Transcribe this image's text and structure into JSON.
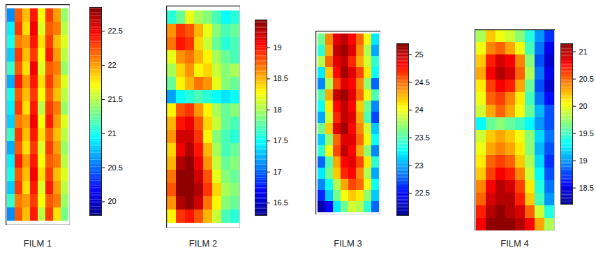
{
  "chart_data": [
    {
      "type": "heatmap",
      "title": "FILM 1",
      "tick_labels": false,
      "colorbar_range": [
        19.8,
        22.85
      ],
      "colorbar_ticks": [
        20,
        20.5,
        21,
        21.5,
        22,
        22.5
      ],
      "cells": [
        [
          20.6,
          22.2,
          21.9,
          22.4,
          21.7,
          22.3,
          22.0,
          21.4
        ],
        [
          20.9,
          22.3,
          21.8,
          22.5,
          21.6,
          22.2,
          22.1,
          21.5
        ],
        [
          21.0,
          22.1,
          22.0,
          22.4,
          21.8,
          22.3,
          21.9,
          21.6
        ],
        [
          20.8,
          22.3,
          21.9,
          22.3,
          21.7,
          22.4,
          22.0,
          21.5
        ],
        [
          21.1,
          22.2,
          21.8,
          22.5,
          21.6,
          22.2,
          22.1,
          21.4
        ],
        [
          20.7,
          22.4,
          22.0,
          22.4,
          21.8,
          22.3,
          22.0,
          21.6
        ],
        [
          21.0,
          22.2,
          21.9,
          22.3,
          21.7,
          22.2,
          21.9,
          21.5
        ],
        [
          20.9,
          22.3,
          21.8,
          22.4,
          21.5,
          22.3,
          22.1,
          21.4
        ],
        [
          20.8,
          22.1,
          22.0,
          22.5,
          21.7,
          22.4,
          22.0,
          21.6
        ],
        [
          21.1,
          22.3,
          21.9,
          22.4,
          21.8,
          22.2,
          21.9,
          21.5
        ],
        [
          20.7,
          22.2,
          21.8,
          22.3,
          21.6,
          22.3,
          22.0,
          21.4
        ],
        [
          20.9,
          22.4,
          22.0,
          22.4,
          21.7,
          22.2,
          22.1,
          21.5
        ],
        [
          21.0,
          22.2,
          21.9,
          22.5,
          21.8,
          22.3,
          21.9,
          21.6
        ],
        [
          20.8,
          22.3,
          21.8,
          22.4,
          21.6,
          22.4,
          22.0,
          21.5
        ],
        [
          21.1,
          22.1,
          22.0,
          22.3,
          21.7,
          22.2,
          22.1,
          21.4
        ],
        [
          20.6,
          22.2,
          21.9,
          22.4,
          21.5,
          22.3,
          21.8,
          21.3
        ]
      ]
    },
    {
      "type": "heatmap",
      "title": "FILM 2",
      "tick_labels": false,
      "colorbar_range": [
        16.3,
        19.45
      ],
      "colorbar_ticks": [
        16.5,
        17,
        17.5,
        18,
        18.5,
        19
      ],
      "cells": [
        [
          17.6,
          17.8,
          18.2,
          18.0,
          17.9,
          17.7,
          17.5,
          17.6
        ],
        [
          18.6,
          18.9,
          18.8,
          18.5,
          18.2,
          17.9,
          17.7,
          17.8
        ],
        [
          18.7,
          19.0,
          18.9,
          18.4,
          18.1,
          17.8,
          17.6,
          17.7
        ],
        [
          18.2,
          18.6,
          18.7,
          18.5,
          18.3,
          18.0,
          17.8,
          17.7
        ],
        [
          18.0,
          18.4,
          18.6,
          18.3,
          18.4,
          18.1,
          17.9,
          18.0
        ],
        [
          17.8,
          18.3,
          18.5,
          18.7,
          18.6,
          18.2,
          17.9,
          17.8
        ],
        [
          17.2,
          17.5,
          17.6,
          17.7,
          17.6,
          17.5,
          17.4,
          17.5
        ],
        [
          18.3,
          18.8,
          18.9,
          18.6,
          18.3,
          18.0,
          17.8,
          17.9
        ],
        [
          18.5,
          19.0,
          19.1,
          18.8,
          18.4,
          18.1,
          17.8,
          17.7
        ],
        [
          18.6,
          19.2,
          19.2,
          18.9,
          18.3,
          17.9,
          17.7,
          17.6
        ],
        [
          18.4,
          19.1,
          19.3,
          19.0,
          18.5,
          18.0,
          17.7,
          17.8
        ],
        [
          18.5,
          19.3,
          19.4,
          19.1,
          18.6,
          18.1,
          17.8,
          17.9
        ],
        [
          18.7,
          19.4,
          19.4,
          19.2,
          18.8,
          18.2,
          17.9,
          17.8
        ],
        [
          18.8,
          19.4,
          19.4,
          19.3,
          18.9,
          18.4,
          18.0,
          17.9
        ],
        [
          18.6,
          19.3,
          19.4,
          19.2,
          18.7,
          18.3,
          17.9,
          17.8
        ],
        [
          18.3,
          18.9,
          19.0,
          18.8,
          18.5,
          18.1,
          17.7,
          17.6
        ]
      ]
    },
    {
      "type": "heatmap",
      "title": "FILM 3",
      "tick_labels": false,
      "colorbar_range": [
        22.1,
        25.2
      ],
      "colorbar_ticks": [
        22.5,
        23,
        23.5,
        24,
        24.5,
        25
      ],
      "cells": [
        [
          23.6,
          24.4,
          24.9,
          25.0,
          24.8,
          24.5,
          24.0,
          23.2
        ],
        [
          23.4,
          24.3,
          25.0,
          25.1,
          24.9,
          24.4,
          23.8,
          23.0
        ],
        [
          23.8,
          24.5,
          24.9,
          25.0,
          24.7,
          24.3,
          23.9,
          23.4
        ],
        [
          23.2,
          24.2,
          24.8,
          25.1,
          24.9,
          24.6,
          24.1,
          23.3
        ],
        [
          22.9,
          23.8,
          24.6,
          24.9,
          24.8,
          24.4,
          23.7,
          22.8
        ],
        [
          23.5,
          24.3,
          25.0,
          25.1,
          24.9,
          24.5,
          24.0,
          23.5
        ],
        [
          23.3,
          24.1,
          24.8,
          25.0,
          24.8,
          24.2,
          23.6,
          22.9
        ],
        [
          23.0,
          23.9,
          24.7,
          25.0,
          24.9,
          24.3,
          23.5,
          22.7
        ],
        [
          23.6,
          24.2,
          24.9,
          25.1,
          24.8,
          24.4,
          23.9,
          23.1
        ],
        [
          23.1,
          23.7,
          24.5,
          24.9,
          24.9,
          24.5,
          24.0,
          23.3
        ],
        [
          23.4,
          24.0,
          24.6,
          25.0,
          24.8,
          24.3,
          23.7,
          22.9
        ],
        [
          22.8,
          23.5,
          24.3,
          24.8,
          24.9,
          24.6,
          24.1,
          23.4
        ],
        [
          23.2,
          23.6,
          24.2,
          24.7,
          24.8,
          24.4,
          23.8,
          23.0
        ],
        [
          22.9,
          23.3,
          23.8,
          24.3,
          24.6,
          24.5,
          24.0,
          23.3
        ],
        [
          22.6,
          23.1,
          23.6,
          24.0,
          24.2,
          24.1,
          23.7,
          23.1
        ],
        [
          22.2,
          22.5,
          23.2,
          23.6,
          23.9,
          23.8,
          23.4,
          22.8
        ]
      ]
    },
    {
      "type": "heatmap",
      "title": "FILM 4",
      "tick_labels": false,
      "colorbar_range": [
        18.2,
        21.15
      ],
      "colorbar_ticks": [
        18.5,
        19,
        19.5,
        20,
        20.5,
        21
      ],
      "cells": [
        [
          19.8,
          20.2,
          20.0,
          19.9,
          19.7,
          19.4,
          19.0,
          18.7
        ],
        [
          20.0,
          20.4,
          20.5,
          20.3,
          20.0,
          19.5,
          18.9,
          18.5
        ],
        [
          20.2,
          20.7,
          20.9,
          20.8,
          20.4,
          19.7,
          18.8,
          18.4
        ],
        [
          20.3,
          20.8,
          21.0,
          20.9,
          20.5,
          19.8,
          18.9,
          18.5
        ],
        [
          20.1,
          20.6,
          20.8,
          20.7,
          20.3,
          19.6,
          18.8,
          18.4
        ],
        [
          20.0,
          20.5,
          20.6,
          20.4,
          20.1,
          19.5,
          18.9,
          18.6
        ],
        [
          19.9,
          20.3,
          20.5,
          20.3,
          20.0,
          19.6,
          19.1,
          18.8
        ],
        [
          19.3,
          19.6,
          19.7,
          19.6,
          19.5,
          19.3,
          19.0,
          18.8
        ],
        [
          19.9,
          20.2,
          20.3,
          20.2,
          20.0,
          19.7,
          19.2,
          18.9
        ],
        [
          20.0,
          20.3,
          20.4,
          20.3,
          20.1,
          19.7,
          19.1,
          18.8
        ],
        [
          20.1,
          20.5,
          20.6,
          20.5,
          20.2,
          19.8,
          19.2,
          18.7
        ],
        [
          20.2,
          20.6,
          20.8,
          20.7,
          20.4,
          19.9,
          19.3,
          18.8
        ],
        [
          20.4,
          20.8,
          21.0,
          20.9,
          20.6,
          20.1,
          19.4,
          18.9
        ],
        [
          20.5,
          20.9,
          21.0,
          21.0,
          20.7,
          20.2,
          19.5,
          19.0
        ],
        [
          20.7,
          21.0,
          21.1,
          21.0,
          20.9,
          20.5,
          19.9,
          19.4
        ],
        [
          20.8,
          21.1,
          21.1,
          21.1,
          21.0,
          20.8,
          20.3,
          19.8
        ]
      ]
    }
  ]
}
